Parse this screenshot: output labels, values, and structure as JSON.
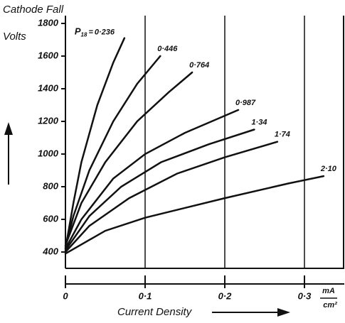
{
  "chart_data": {
    "type": "line",
    "y_title_line1": "Cathode Fall",
    "y_title_line2": "Volts",
    "x_title": "Current Density",
    "x_unit_top": "mA",
    "x_unit_bottom": "cm²",
    "parameter_symbol": "P",
    "parameter_subscript": "18",
    "parameter_equals": "=",
    "xlim": [
      0,
      0.35
    ],
    "ylim": [
      300,
      1800
    ],
    "xticks": [
      0,
      {
        "value": 0.1,
        "label": "0·1"
      },
      {
        "value": 0.2,
        "label": "0·2"
      },
      {
        "value": 0.3,
        "label": "0·3"
      }
    ],
    "yticks": [
      400,
      600,
      800,
      1000,
      1200,
      1400,
      1600,
      1800
    ],
    "grid": true,
    "color": "#111111",
    "series": [
      {
        "name": "0·236",
        "x": [
          0,
          0.01,
          0.02,
          0.04,
          0.06,
          0.074
        ],
        "values": [
          420,
          700,
          950,
          1300,
          1560,
          1710
        ]
      },
      {
        "name": "0·446",
        "x": [
          0,
          0.01,
          0.03,
          0.06,
          0.09,
          0.119
        ],
        "values": [
          430,
          620,
          900,
          1200,
          1430,
          1600
        ]
      },
      {
        "name": "0·764",
        "x": [
          0,
          0.02,
          0.05,
          0.09,
          0.13,
          0.159
        ],
        "values": [
          440,
          700,
          950,
          1200,
          1380,
          1500
        ]
      },
      {
        "name": "0·987",
        "x": [
          0,
          0.02,
          0.06,
          0.1,
          0.15,
          0.217
        ],
        "values": [
          420,
          600,
          850,
          1000,
          1130,
          1270
        ]
      },
      {
        "name": "1·34",
        "x": [
          0,
          0.03,
          0.07,
          0.12,
          0.18,
          0.237
        ],
        "values": [
          410,
          620,
          800,
          950,
          1060,
          1150
        ]
      },
      {
        "name": "1·74",
        "x": [
          0,
          0.03,
          0.08,
          0.14,
          0.2,
          0.266
        ],
        "values": [
          400,
          560,
          730,
          880,
          980,
          1075
        ]
      },
      {
        "name": "2·10",
        "x": [
          0,
          0.05,
          0.1,
          0.2,
          0.28,
          0.324
        ],
        "values": [
          390,
          530,
          610,
          730,
          820,
          865
        ]
      }
    ]
  }
}
